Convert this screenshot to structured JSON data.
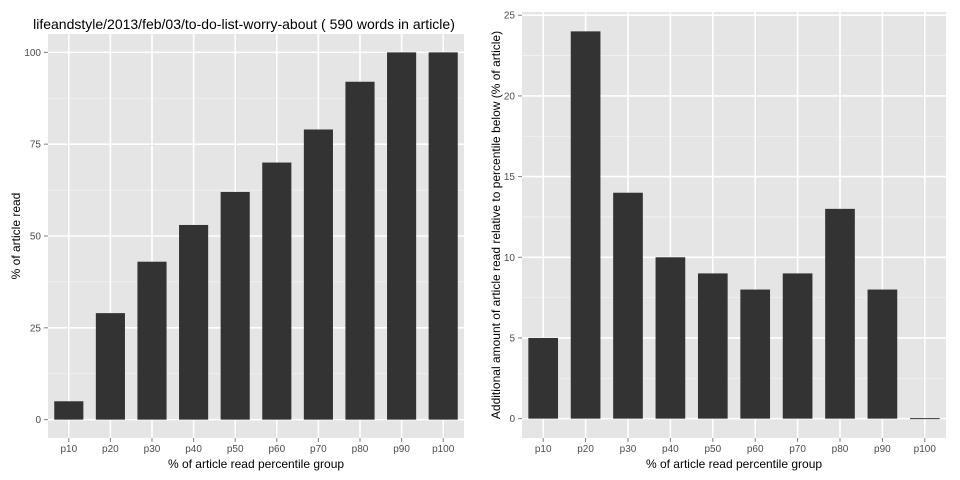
{
  "colors": {
    "panel_bg": "#e5e5e5",
    "grid_major": "#ffffff",
    "grid_minor": "#f2f2f2",
    "bar_fill": "#333333",
    "tick_text": "#4d4d4d",
    "tick_mark": "#7f7f7f"
  },
  "chart_data": [
    {
      "type": "bar",
      "title": "lifeandstyle/2013/feb/03/to-do-list-worry-about ( 590 words in article)",
      "xlabel": "% of article read percentile group",
      "ylabel": "% of article read",
      "categories": [
        "p10",
        "p20",
        "p30",
        "p40",
        "p50",
        "p60",
        "p70",
        "p80",
        "p90",
        "p100"
      ],
      "values": [
        5,
        29,
        43,
        53,
        62,
        70,
        79,
        92,
        100,
        100
      ],
      "ylim": [
        -5,
        105
      ],
      "yticks": [
        0,
        25,
        50,
        75,
        100
      ],
      "grid": true,
      "legend": "none"
    },
    {
      "type": "bar",
      "title": "",
      "xlabel": "% of article read percentile group",
      "ylabel": "Additional amount of article read relative to percentile below (% of article)",
      "categories": [
        "p10",
        "p20",
        "p30",
        "p40",
        "p50",
        "p60",
        "p70",
        "p80",
        "p90",
        "p100"
      ],
      "values": [
        5,
        24,
        14,
        10,
        9,
        8,
        9,
        13,
        8,
        0
      ],
      "ylim": [
        -1.2,
        25.2
      ],
      "yticks": [
        0,
        5,
        10,
        15,
        20,
        25
      ],
      "grid": true,
      "legend": "none"
    }
  ]
}
